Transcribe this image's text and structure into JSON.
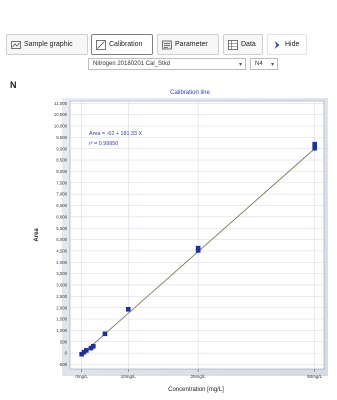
{
  "toolbar": {
    "sample_graphic": "Sample graphic",
    "calibration": "Calibration",
    "parameter": "Parameter",
    "data": "Data",
    "hide": "Hide"
  },
  "selectors": {
    "calibration_file": "Nitrogen 20180201 Cal_Stkd",
    "variant": "N4"
  },
  "panel_label": "N",
  "chart_data": {
    "type": "scatter",
    "title": "Calibration line",
    "xlabel": "Concentration [mg/L]",
    "ylabel": "Area",
    "x_ticks": [
      {
        "v": 0,
        "label": "0mg/L"
      },
      {
        "v": 10,
        "label": "10mg/L"
      },
      {
        "v": 25,
        "label": "25mg/L"
      },
      {
        "v": 50,
        "label": "50mg/L"
      }
    ],
    "y_ticks": [
      -500,
      0,
      500,
      1000,
      1500,
      2000,
      2500,
      3000,
      3500,
      4000,
      4500,
      5000,
      5500,
      6000,
      6500,
      7000,
      7500,
      8000,
      8500,
      9000,
      9500,
      10000,
      10500,
      11000
    ],
    "xlim": [
      -2.5,
      52
    ],
    "ylim": [
      -700,
      11100
    ],
    "grid": true,
    "equation": "Area = -62 + 181.33 X",
    "r2": "r² = 0.99950",
    "series": [
      {
        "points": [
          [
            0,
            -50
          ],
          [
            0.5,
            40
          ],
          [
            1,
            120
          ],
          [
            2,
            220
          ],
          [
            2.5,
            300
          ],
          [
            5,
            850
          ],
          [
            10,
            1930
          ],
          [
            25,
            4520
          ],
          [
            25,
            4620
          ],
          [
            50,
            9020
          ],
          [
            50,
            9200
          ]
        ],
        "fit": [
          [
            0,
            -62
          ],
          [
            50,
            9004
          ]
        ]
      }
    ],
    "colors": {
      "plot_bg": "#ffffff",
      "grid": "#c7cbe0",
      "fit_line": "#7a7f55",
      "points": "#1f2f9e",
      "title": "#2b3fbf"
    }
  }
}
